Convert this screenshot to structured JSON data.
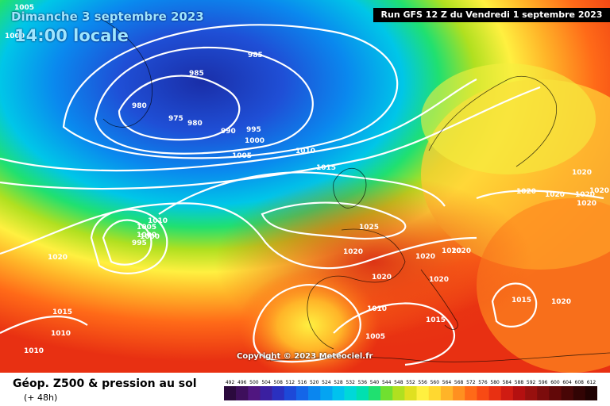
{
  "header": {
    "date_title": "Dimanche 3 septembre 2023",
    "local_time": "14:00 locale",
    "run_info": "Run GFS 12 Z du Vendredi 1 septembre 2023"
  },
  "footer": {
    "copyright": "Copyright © 2023 Meteociel.fr",
    "legend_title": "Géop. Z500 & pression au sol",
    "legend_sub": "(+ 48h)"
  },
  "scale": {
    "labels": [
      "492",
      "496",
      "500",
      "504",
      "508",
      "512",
      "516",
      "520",
      "524",
      "528",
      "532",
      "536",
      "540",
      "544",
      "548",
      "552",
      "556",
      "560",
      "564",
      "568",
      "572",
      "576",
      "580",
      "584",
      "588",
      "592",
      "596",
      "600",
      "604",
      "608",
      "612"
    ],
    "colors": [
      "#2b0a3d",
      "#3e0f5c",
      "#501680",
      "#3a1fa0",
      "#2a30c0",
      "#1d49d8",
      "#1466e8",
      "#0a86ef",
      "#04a4f2",
      "#00c2ee",
      "#00d8d8",
      "#00e0b0",
      "#20e070",
      "#70e030",
      "#b0e020",
      "#e0e020",
      "#fff040",
      "#ffd830",
      "#ffb428",
      "#ff9020",
      "#ff6a18",
      "#f84a14",
      "#e83012",
      "#d01c12",
      "#b41010",
      "#98100e",
      "#7c0c0c",
      "#620808",
      "#480606",
      "#320404",
      "#200202"
    ]
  },
  "isobars": [
    {
      "label": "1005",
      "color": "#ffffff"
    },
    {
      "label": "1000",
      "color": "#ffffff"
    },
    {
      "label": "985",
      "color": "#ffffff"
    },
    {
      "label": "985",
      "color": "#ffffff"
    },
    {
      "label": "980",
      "color": "#ffffff"
    },
    {
      "label": "975",
      "color": "#ffffff"
    },
    {
      "label": "980",
      "color": "#ffffff"
    },
    {
      "label": "990",
      "color": "#ffffff"
    },
    {
      "label": "995",
      "color": "#ffffff"
    },
    {
      "label": "1000",
      "color": "#ffffff"
    },
    {
      "label": "1005",
      "color": "#ffffff"
    },
    {
      "label": "1010",
      "color": "#ffffff"
    },
    {
      "label": "1000",
      "color": "#ffffff"
    },
    {
      "label": "1015",
      "color": "#ffffff"
    },
    {
      "label": "1005",
      "color": "#ffffff"
    },
    {
      "label": "1010",
      "color": "#ffffff"
    },
    {
      "label": "1000",
      "color": "#ffffff"
    },
    {
      "label": "995",
      "color": "#ffffff"
    },
    {
      "label": "1020",
      "color": "#ffffff"
    },
    {
      "label": "1025",
      "color": "#ffffff"
    },
    {
      "label": "1020",
      "color": "#ffffff"
    },
    {
      "label": "1020",
      "color": "#ffffff"
    },
    {
      "label": "1020",
      "color": "#ffffff"
    },
    {
      "label": "1020",
      "color": "#ffffff"
    },
    {
      "label": "1020",
      "color": "#ffffff"
    },
    {
      "label": "1015",
      "color": "#ffffff"
    },
    {
      "label": "1010",
      "color": "#ffffff"
    },
    {
      "label": "1010",
      "color": "#ffffff"
    },
    {
      "label": "1010",
      "color": "#ffffff"
    },
    {
      "label": "1005",
      "color": "#ffffff"
    },
    {
      "label": "1015",
      "color": "#ffffff"
    },
    {
      "label": "1020",
      "color": "#ffffff"
    },
    {
      "label": "1020",
      "color": "#ffffff"
    },
    {
      "label": "1020",
      "color": "#ffffff"
    },
    {
      "label": "1020",
      "color": "#ffffff"
    },
    {
      "label": "1020",
      "color": "#ffffff"
    },
    {
      "label": "1020",
      "color": "#ffffff"
    },
    {
      "label": "1020",
      "color": "#ffffff"
    },
    {
      "label": "1020",
      "color": "#ffffff"
    },
    {
      "label": "1015",
      "color": "#ffffff"
    }
  ]
}
